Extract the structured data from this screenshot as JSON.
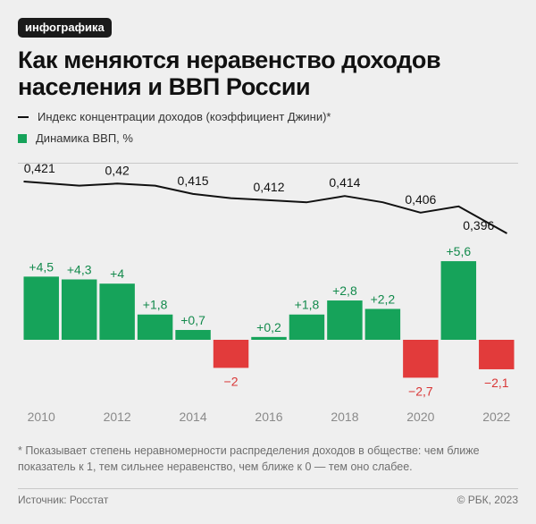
{
  "badge": "инфографика",
  "title_line1": "Как меняются неравенство доходов",
  "title_line2": "населения и ВВП России",
  "legend": {
    "gini": "Индекс концентрации доходов (коэффициент Джини)*",
    "gdp": "Динамика ВВП, %"
  },
  "colors": {
    "positive": "#16a35a",
    "negative": "#e23b3b",
    "line": "#111111",
    "positive_label": "#138a4c",
    "negative_label": "#d93636",
    "axis_label": "#8a8a8a"
  },
  "chart_data": {
    "type": "bar+line",
    "years": [
      2010,
      2011,
      2012,
      2013,
      2014,
      2015,
      2016,
      2017,
      2018,
      2019,
      2020,
      2021,
      2022
    ],
    "x_tick_labels": [
      "2010",
      "2012",
      "2014",
      "2016",
      "2018",
      "2020",
      "2022"
    ],
    "gdp_growth": [
      4.5,
      4.3,
      4.0,
      1.8,
      0.7,
      -2.0,
      0.2,
      1.8,
      2.8,
      2.2,
      -2.7,
      5.6,
      -2.1
    ],
    "gdp_labels": [
      "+4,5",
      "+4,3",
      "+4",
      "+1,8",
      "+0,7",
      "−2",
      "+0,2",
      "+1,8",
      "+2,8",
      "+2,2",
      "−2,7",
      "+5,6",
      "−2,1"
    ],
    "gini": [
      0.421,
      0.419,
      0.42,
      0.419,
      0.415,
      0.413,
      0.412,
      0.411,
      0.414,
      0.411,
      0.406,
      0.409,
      0.396
    ],
    "gini_labels": [
      {
        "year": 2010,
        "text": "0,421"
      },
      {
        "year": 2012,
        "text": "0,42"
      },
      {
        "year": 2014,
        "text": "0,415"
      },
      {
        "year": 2016,
        "text": "0,412"
      },
      {
        "year": 2018,
        "text": "0,414"
      },
      {
        "year": 2020,
        "text": "0,406"
      },
      {
        "year": 2022,
        "text": "0,396"
      }
    ]
  },
  "footnote": "* Показывает степень неравномерности распределения доходов в обществе: чем ближе показатель к 1, тем сильнее неравенство, чем ближе к 0 — тем оно слабее.",
  "source": "Источник: Росстат",
  "copyright": "© РБК, 2023"
}
